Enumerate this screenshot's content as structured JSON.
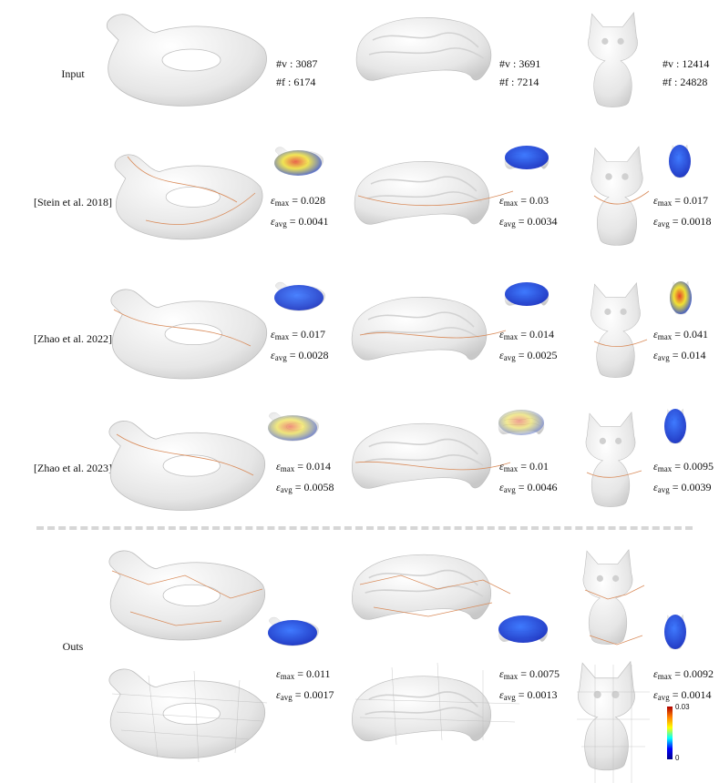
{
  "rows": {
    "input": "Input",
    "stein": "[Stein et al. 2018]",
    "zhao22": "[Zhao et al. 2022]",
    "zhao23": "[Zhao et al. 2023]",
    "ours": "Outs"
  },
  "input_meta": {
    "duck": {
      "v": "#v : 3087",
      "f": "#f : 6174"
    },
    "rock": {
      "v": "#v : 3691",
      "f": "#f : 7214"
    },
    "cat": {
      "v": "#v : 12414",
      "f": "#f : 24828"
    }
  },
  "stats": {
    "stein": {
      "duck": {
        "max": "= 0.028",
        "avg": "= 0.0041"
      },
      "rock": {
        "max": "= 0.03",
        "avg": "= 0.0034"
      },
      "cat": {
        "max": "= 0.017",
        "avg": "= 0.0018"
      }
    },
    "zhao22": {
      "duck": {
        "max": "= 0.017",
        "avg": "= 0.0028"
      },
      "rock": {
        "max": "= 0.014",
        "avg": "= 0.0025"
      },
      "cat": {
        "max": "= 0.041",
        "avg": "= 0.014"
      }
    },
    "zhao23": {
      "duck": {
        "max": "= 0.014",
        "avg": "= 0.0058"
      },
      "rock": {
        "max": "= 0.01",
        "avg": "= 0.0046"
      },
      "cat": {
        "max": "= 0.0095",
        "avg": "= 0.0039"
      }
    },
    "ours": {
      "duck": {
        "max": "= 0.011",
        "avg": "= 0.0017"
      },
      "rock": {
        "max": "= 0.0075",
        "avg": "= 0.0013"
      },
      "cat": {
        "max": "= 0.0092",
        "avg": "= 0.0014"
      }
    }
  },
  "symbols": {
    "eps": "ε",
    "max": "max",
    "avg": "avg"
  },
  "colorbar": {
    "top": "0.03",
    "bottom": "0"
  },
  "colors": {
    "mesh": "#e8e8e8",
    "seam": "#d98b5a",
    "err_low": "#0a28d8",
    "err_high": "#d01818"
  }
}
